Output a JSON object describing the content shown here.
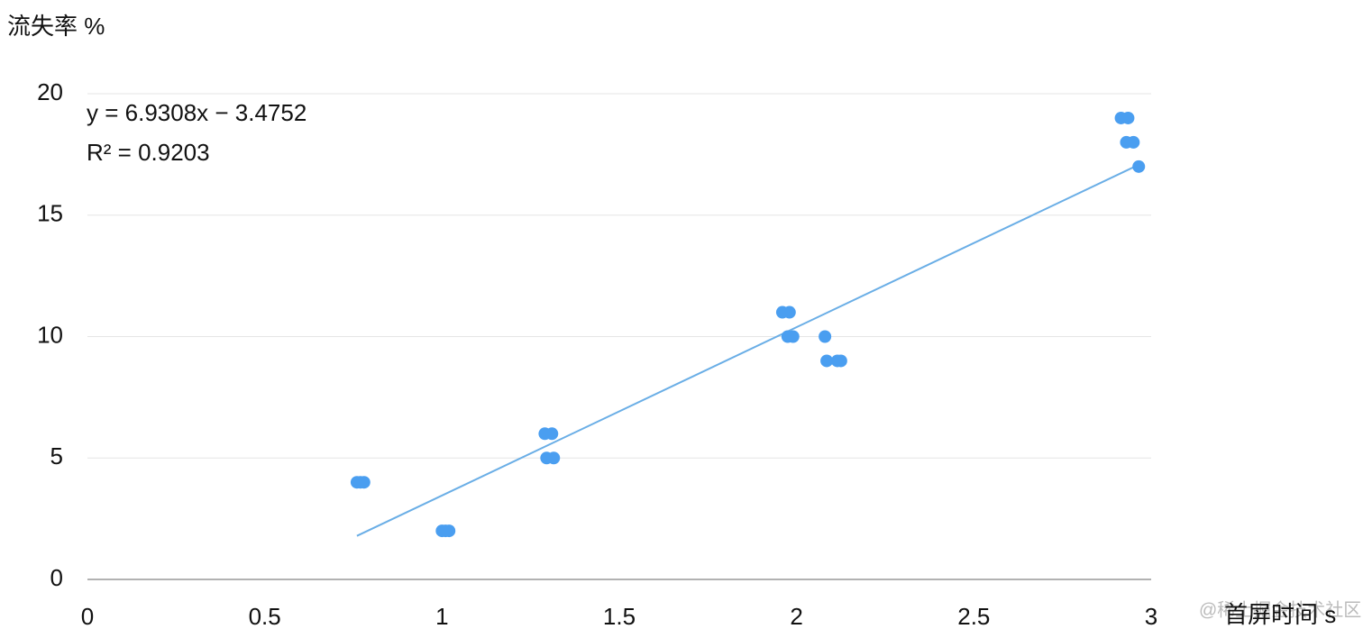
{
  "chart_data": {
    "type": "scatter",
    "y_label": "流失率 %",
    "x_label": "首屏时间 s",
    "annotations": [
      "y = 6.9308x − 3.4752",
      "R² = 0.9203"
    ],
    "watermark": "@稀土掘金技术社区",
    "trendline": {
      "slope": 6.9308,
      "intercept": -3.4752,
      "color": "#6aaee6"
    },
    "series": [
      {
        "color": "#4a9ef0",
        "x": [
          0.76,
          0.77,
          0.78,
          1.0,
          1.01,
          1.02,
          1.29,
          1.31,
          1.295,
          1.315,
          1.96,
          1.98,
          1.975,
          1.99,
          2.08,
          2.085,
          2.115,
          2.125,
          2.915,
          2.935,
          2.93,
          2.95,
          2.965
        ],
        "values": [
          4,
          4,
          4,
          2,
          2,
          2,
          6,
          6,
          5,
          5,
          11,
          11,
          10,
          10,
          10,
          9,
          9,
          9,
          19,
          19,
          18,
          18,
          17
        ]
      }
    ],
    "xlim": [
      0,
      3
    ],
    "xticks": [
      0,
      0.5,
      1,
      1.5,
      2,
      2.5,
      3
    ],
    "ylim": [
      0,
      20
    ],
    "yticks": [
      0,
      5,
      10,
      15,
      20
    ],
    "grid": true
  }
}
